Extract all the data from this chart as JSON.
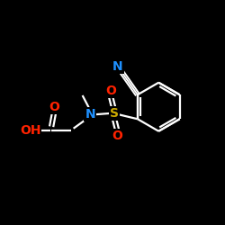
{
  "background_color": "#000000",
  "bond_color": "#ffffff",
  "atom_colors": {
    "N_nitrile": "#1e90ff",
    "N_amine": "#1e90ff",
    "O_carbonyl": "#ff2200",
    "O_sulfonyl": "#ff2200",
    "S": "#ccaa00",
    "OH": "#ff2200",
    "C": "#ffffff"
  },
  "figsize": [
    2.5,
    2.5
  ],
  "dpi": 100,
  "xlim": [
    0,
    10
  ],
  "ylim": [
    0,
    10
  ]
}
